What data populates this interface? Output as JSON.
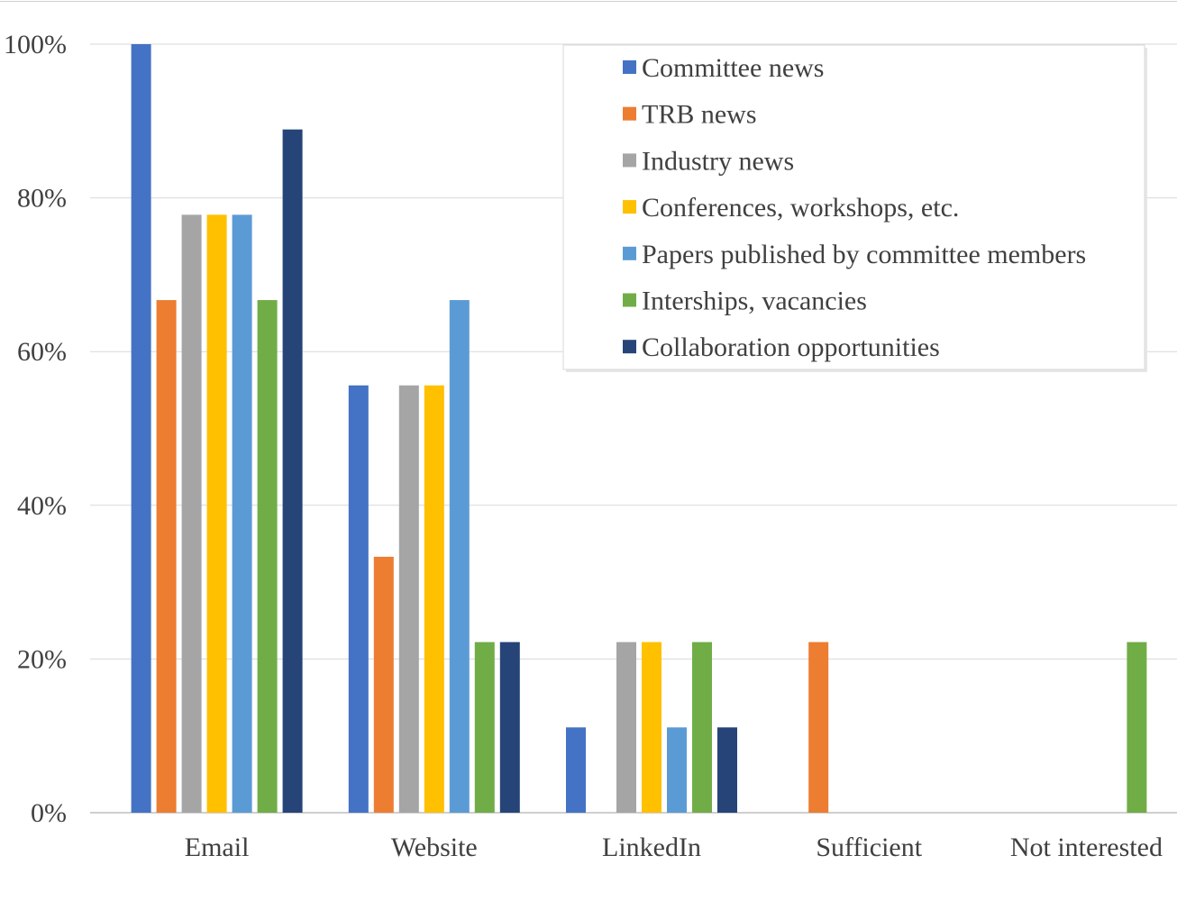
{
  "chart_data": {
    "type": "bar",
    "categories": [
      "Email",
      "Website",
      "LinkedIn",
      "Sufficient",
      "Not interested"
    ],
    "series": [
      {
        "name": "Committee news",
        "color": "#4472C4",
        "values": [
          100,
          55.6,
          11.1,
          0,
          0
        ]
      },
      {
        "name": "TRB news",
        "color": "#ED7D31",
        "values": [
          66.7,
          33.3,
          0,
          22.2,
          0
        ]
      },
      {
        "name": "Industry news",
        "color": "#A5A5A5",
        "values": [
          77.8,
          55.6,
          22.2,
          0,
          0
        ]
      },
      {
        "name": "Conferences, workshops, etc.",
        "color": "#FFC000",
        "values": [
          77.8,
          55.6,
          22.2,
          0,
          0
        ]
      },
      {
        "name": "Papers published by committee members",
        "color": "#5B9BD5",
        "values": [
          77.8,
          66.7,
          11.1,
          0,
          0
        ]
      },
      {
        "name": "Interships, vacancies",
        "color": "#70AD47",
        "values": [
          66.7,
          22.2,
          22.2,
          0,
          22.2
        ]
      },
      {
        "name": "Collaboration opportunities",
        "color": "#264478",
        "values": [
          88.9,
          22.2,
          11.1,
          0,
          0
        ]
      }
    ],
    "y_ticks": [
      "0%",
      "20%",
      "40%",
      "60%",
      "80%",
      "100%"
    ],
    "ylim": [
      0,
      100
    ],
    "grid": true,
    "legend_position": "top-right",
    "title": "",
    "xlabel": "",
    "ylabel": ""
  }
}
